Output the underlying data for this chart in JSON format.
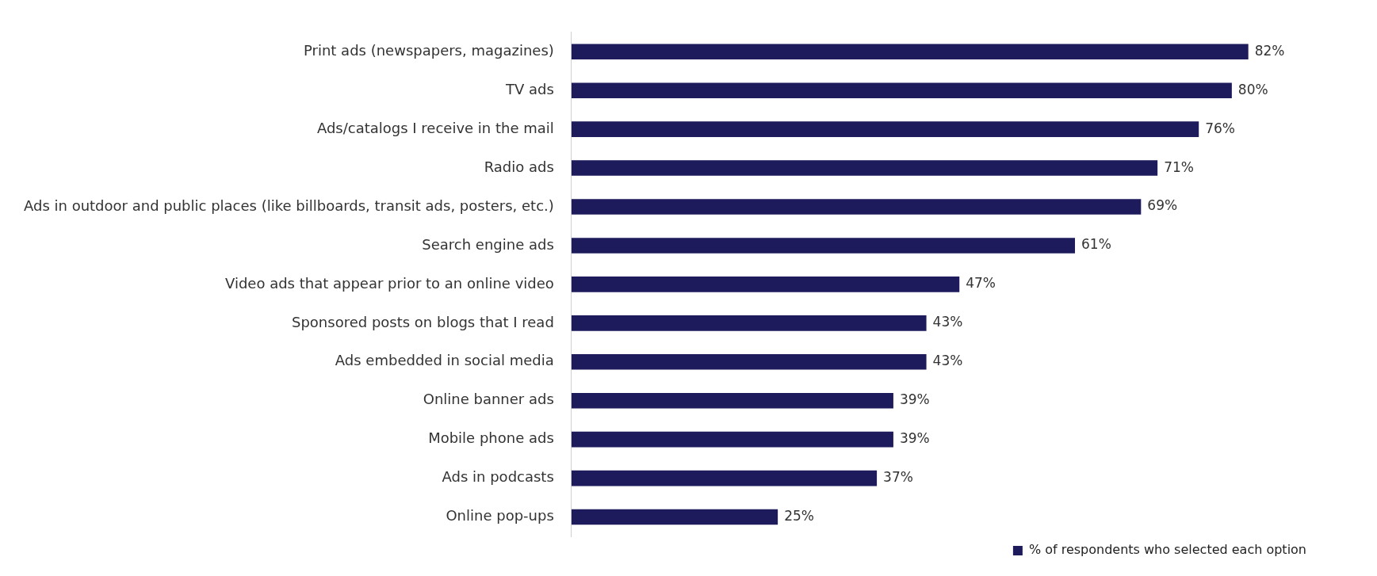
{
  "chart_data": {
    "type": "bar",
    "orientation": "horizontal",
    "categories": [
      "Print ads (newspapers, magazines)",
      "TV ads",
      "Ads/catalogs I receive in the mail",
      "Radio ads",
      "Ads in outdoor and public places (like billboards, transit ads, posters, etc.)",
      "Search engine ads",
      "Video ads that appear prior to an online video",
      "Sponsored posts on blogs that I read",
      "Ads embedded in social media",
      "Online banner ads",
      "Mobile phone ads",
      "Ads in podcasts",
      "Online pop-ups"
    ],
    "series": [
      {
        "name": "% of respondents who selected each option",
        "color": "#1e1b5c",
        "values": [
          82,
          80,
          76,
          71,
          69,
          61,
          47,
          43,
          43,
          39,
          39,
          37,
          25
        ],
        "value_labels": [
          "82%",
          "80%",
          "76%",
          "71%",
          "69%",
          "61%",
          "47%",
          "43%",
          "43%",
          "39%",
          "39%",
          "37%",
          "25%"
        ]
      }
    ],
    "legend": "bottom right",
    "grid": false
  }
}
